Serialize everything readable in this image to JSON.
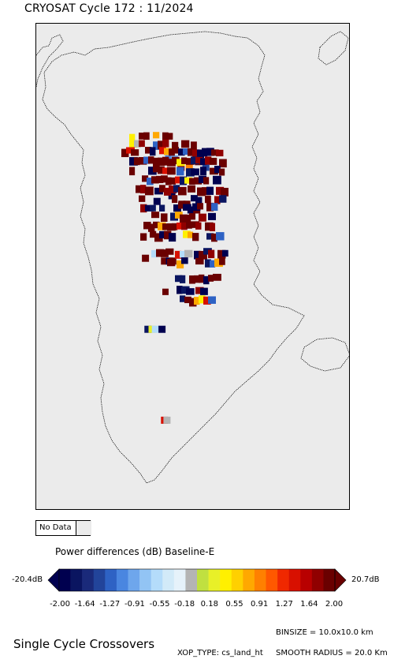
{
  "header": {
    "title": "CRYOSAT Cycle 172 : 11/2024"
  },
  "map": {
    "region": "Greenland",
    "background_color": "#ebebeb",
    "coastline_color": "#000000",
    "legend_nodata": "No Data",
    "crossover_cells": [
      {
        "lon": -46.5,
        "lat": 61.6,
        "value": 1.4
      },
      {
        "lon": -46.2,
        "lat": 61.6,
        "value": "nodata"
      },
      {
        "lon": -48.5,
        "lat": 64.8,
        "value": -1.9
      },
      {
        "lon": -48.0,
        "lat": 64.8,
        "value": 0.3
      },
      {
        "lon": -47.6,
        "lat": 64.8,
        "value": -0.6
      },
      {
        "lon": -46.8,
        "lat": 64.8,
        "value": -2.0
      },
      {
        "lon": -48.8,
        "lat": 67.3,
        "value": 2.0
      },
      {
        "lon": -46.5,
        "lat": 67.2,
        "value": 2.0
      },
      {
        "lon": -45.9,
        "lat": 67.2,
        "value": -2.0
      },
      {
        "lon": -45.5,
        "lat": 67.2,
        "value": 2.0
      },
      {
        "lon": -47.4,
        "lat": 69.3,
        "value": -2.0
      },
      {
        "lon": -45.6,
        "lat": 69.5,
        "value": -2.0
      },
      {
        "lon": -44.4,
        "lat": 69.2,
        "value": 2.0
      },
      {
        "lon": -43.8,
        "lat": 69.2,
        "value": 2.0
      },
      {
        "lon": -43.3,
        "lat": 69.0,
        "value": -2.0
      },
      {
        "lon": -42.6,
        "lat": 69.0,
        "value": 2.0
      },
      {
        "lon": -46.0,
        "lat": 70.8,
        "value": -1.2
      },
      {
        "lon": -45.3,
        "lat": 70.8,
        "value": -1.0
      },
      {
        "lon": -44.5,
        "lat": 70.5,
        "value": 1.8
      },
      {
        "lon": -43.5,
        "lat": 70.5,
        "value": 1.0
      },
      {
        "lon": -42.4,
        "lat": 70.7,
        "value": 2.0
      },
      {
        "lon": -41.5,
        "lat": 70.5,
        "value": -1.4
      }
    ]
  },
  "legend": {
    "title": "Power differences (dB) Baseline-E",
    "min_label": "-20.4dB",
    "max_label": "20.7dB",
    "tick_labels": [
      "-2.00",
      "-1.64",
      "-1.27",
      "-0.91",
      "-0.55",
      "-0.18",
      "0.18",
      "0.55",
      "0.91",
      "1.27",
      "1.64",
      "2.00"
    ],
    "colors": [
      "#00004f",
      "#0a1560",
      "#1a2a7a",
      "#22449a",
      "#2e62c4",
      "#4a86e0",
      "#6ea6ec",
      "#92c4f4",
      "#b4dcfa",
      "#d2eaf8",
      "#e6f2fa",
      "#b4b4b4",
      "#c0e040",
      "#e8f028",
      "#fff000",
      "#ffd000",
      "#ffa800",
      "#ff8000",
      "#ff5800",
      "#f02800",
      "#d81000",
      "#b80000",
      "#900000",
      "#6a0000"
    ],
    "nodata_color": "#ebebeb"
  },
  "footer": {
    "title": "Single Cycle Crossovers",
    "binsize": "BINSIZE = 10.0x10.0 km",
    "xop_type": "XOP_TYPE: cs_land_ht",
    "smooth_radius": "SMOOTH RADIUS = 20.0 Km"
  }
}
